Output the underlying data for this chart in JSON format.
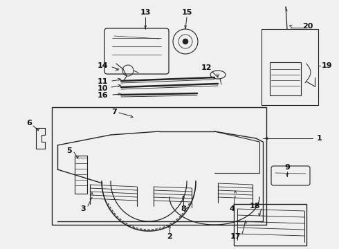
{
  "bg_color": "#f0f0f0",
  "line_color": "#222222",
  "label_color": "#111111",
  "fig_w": 4.9,
  "fig_h": 3.6,
  "dpi": 100
}
